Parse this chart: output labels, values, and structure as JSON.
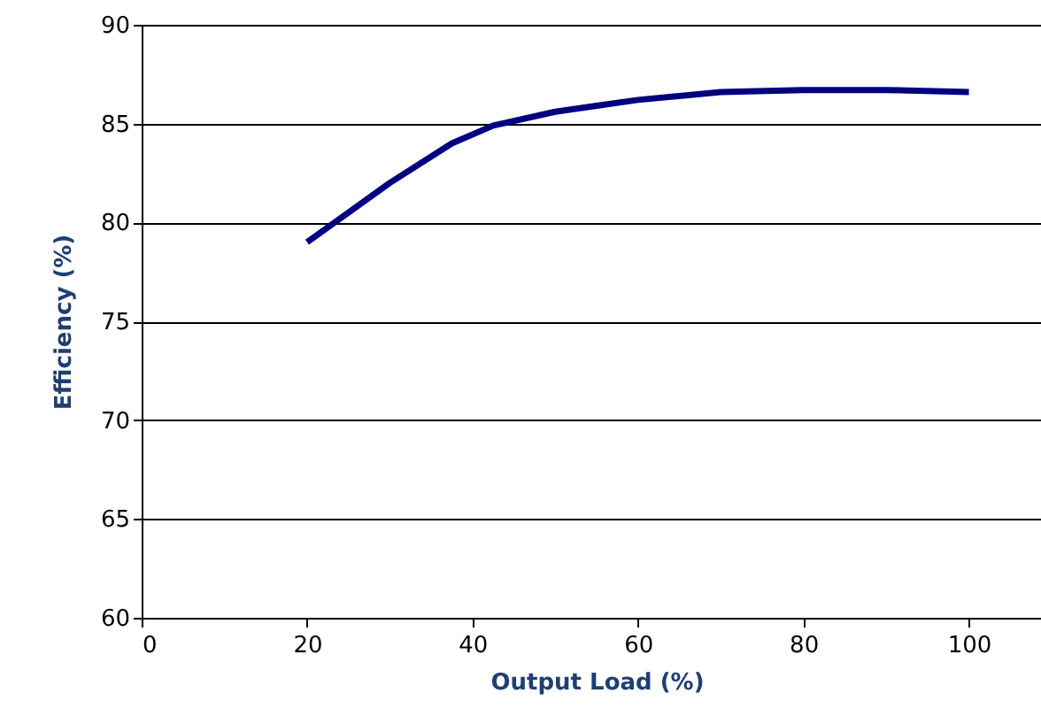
{
  "chart_data": {
    "type": "line",
    "xlabel": "Output Load (%)",
    "ylabel": "Efficiency (%)",
    "x": [
      20,
      30,
      37.5,
      42.5,
      50,
      55,
      60,
      70,
      80,
      90,
      100
    ],
    "series": [
      {
        "color": "#000080",
        "values": [
          79,
          82,
          84,
          84.9,
          85.6,
          85.9,
          86.2,
          86.6,
          86.7,
          86.7,
          86.6
        ]
      }
    ],
    "xlim": [
      0,
      110
    ],
    "xticks": [
      0,
      20,
      40,
      60,
      80,
      100
    ],
    "ylim": [
      60,
      90
    ],
    "yticks": [
      60,
      65,
      70,
      75,
      80,
      85,
      90
    ],
    "grid": "y",
    "marker": "none",
    "line_style": "solid"
  }
}
